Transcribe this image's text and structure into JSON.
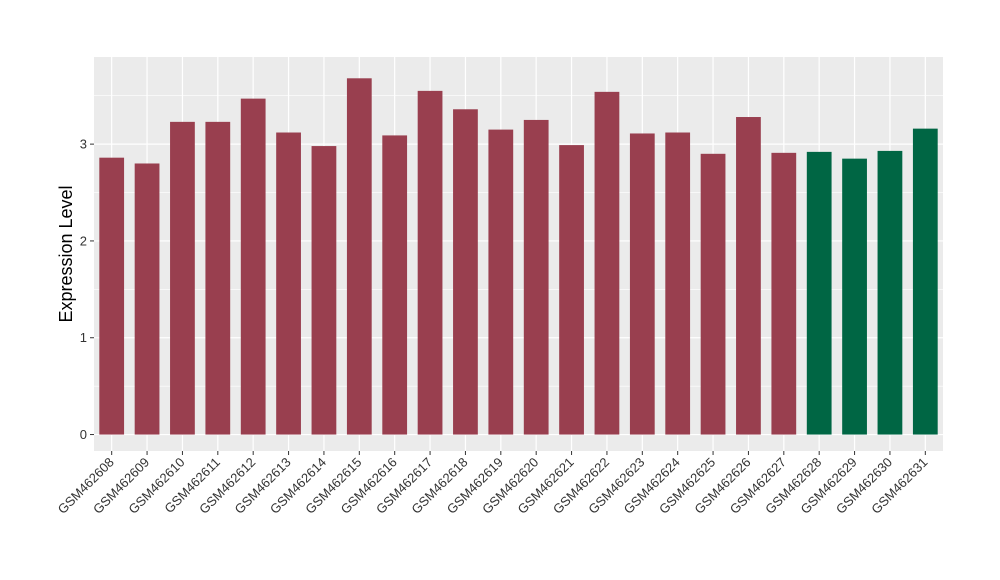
{
  "chart_data": {
    "type": "bar",
    "title": "",
    "xlabel": "",
    "ylabel": "Expression Level",
    "ylim": [
      -0.17,
      3.9
    ],
    "yticks": [
      0,
      1,
      2,
      3
    ],
    "grid": true,
    "legend": "none",
    "categories": [
      "GSM462608",
      "GSM462609",
      "GSM462610",
      "GSM462611",
      "GSM462612",
      "GSM462613",
      "GSM462614",
      "GSM462615",
      "GSM462616",
      "GSM462617",
      "GSM462618",
      "GSM462619",
      "GSM462620",
      "GSM462621",
      "GSM462622",
      "GSM462623",
      "GSM462624",
      "GSM462625",
      "GSM462626",
      "GSM462627",
      "GSM462628",
      "GSM462629",
      "GSM462630",
      "GSM462631"
    ],
    "values": [
      2.86,
      2.8,
      3.23,
      3.23,
      3.47,
      3.12,
      2.98,
      3.68,
      3.09,
      3.55,
      3.36,
      3.15,
      3.25,
      2.99,
      3.54,
      3.11,
      3.12,
      2.9,
      3.28,
      2.91,
      2.92,
      2.85,
      2.93,
      3.16
    ],
    "group": [
      "a",
      "a",
      "a",
      "a",
      "a",
      "a",
      "a",
      "a",
      "a",
      "a",
      "a",
      "a",
      "a",
      "a",
      "a",
      "a",
      "a",
      "a",
      "a",
      "a",
      "b",
      "b",
      "b",
      "b"
    ],
    "colors": {
      "a": "#993F4F",
      "b": "#006644"
    },
    "panel_background": "#EBEBEB",
    "grid_color": "#FFFFFF"
  }
}
